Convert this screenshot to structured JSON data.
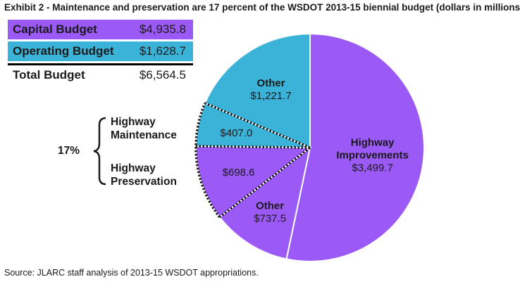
{
  "title": "Exhibit 2 - Maintenance and preservation are 17 percent of the WSDOT 2013-15 biennial budget (dollars in millions)",
  "source": "Source: JLARC staff analysis of 2013-15 WSDOT appropriations.",
  "budget_table": [
    {
      "label": "Capital Budget",
      "value": "$4,935.8",
      "color": "#9b59f5"
    },
    {
      "label": "Operating Budget",
      "value": "$1,628.7",
      "color": "#3bb3d9"
    },
    {
      "label": "Total Budget",
      "value": "$6,564.5",
      "color": "#ffffff"
    }
  ],
  "bracket": {
    "percent": "17%",
    "maintenance_label_line1": "Highway",
    "maintenance_label_line2": "Maintenance",
    "preservation_label_line1": "Highway",
    "preservation_label_line2": "Preservation"
  },
  "colors": {
    "capital": "#9b59f5",
    "operating": "#3bb3d9"
  },
  "chart_data": {
    "type": "pie",
    "title": "Exhibit 2 - Maintenance and preservation are 17 percent of the WSDOT 2013-15 biennial budget (dollars in millions)",
    "slices": [
      {
        "label_line1": "Highway",
        "label_line2": "Improvements",
        "value_text": "$3,499.7",
        "value": 3499.7,
        "budget": "Capital",
        "color": "#9b59f5"
      },
      {
        "label_line1": "Other",
        "label_line2": "",
        "value_text": "$737.5",
        "value": 737.5,
        "budget": "Capital",
        "color": "#9b59f5"
      },
      {
        "label_line1": "",
        "label_line2": "",
        "value_text": "$698.6",
        "value": 698.6,
        "budget": "Capital",
        "color": "#9b59f5",
        "group": "Highway Preservation"
      },
      {
        "label_line1": "",
        "label_line2": "",
        "value_text": "$407.0",
        "value": 407.0,
        "budget": "Operating",
        "color": "#3bb3d9",
        "group": "Highway Maintenance"
      },
      {
        "label_line1": "Other",
        "label_line2": "",
        "value_text": "$1,221.7",
        "value": 1221.7,
        "budget": "Operating",
        "color": "#3bb3d9"
      }
    ]
  }
}
